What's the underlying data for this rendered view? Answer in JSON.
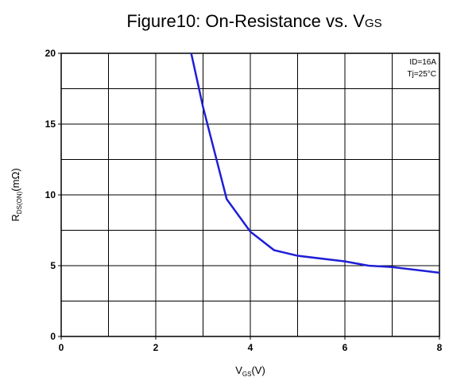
{
  "chart_data": {
    "type": "line",
    "title": "Figure10: On-Resistance vs. V",
    "title_sub": "GS",
    "y_label": "R",
    "y_label_sub": "DS(ON)",
    "y_label_unit": "(mΩ)",
    "x_label": "V",
    "x_label_sub": "GS",
    "x_label_unit": "(V)",
    "annotations": [
      "ID=16A",
      "Tj=25°C"
    ],
    "x": [
      2.75,
      3,
      3.5,
      4,
      4.5,
      5,
      6,
      6.5,
      7,
      8
    ],
    "series": [
      {
        "color": "#1f1fd6",
        "values": [
          20,
          16.2,
          9.7,
          7.4,
          6.1,
          5.7,
          5.3,
          5.0,
          4.9,
          4.5
        ]
      }
    ],
    "xlim": [
      0,
      8
    ],
    "xticks": [
      0,
      2,
      4,
      6,
      8
    ],
    "ylim": [
      0,
      20
    ],
    "yticks": [
      0,
      5,
      10,
      15,
      20
    ],
    "xgrid": [
      1,
      2,
      3,
      4,
      5,
      6,
      7
    ],
    "ygrid": [
      2.5,
      5,
      7.5,
      10,
      12.5,
      15,
      17.5
    ],
    "grid": true
  }
}
